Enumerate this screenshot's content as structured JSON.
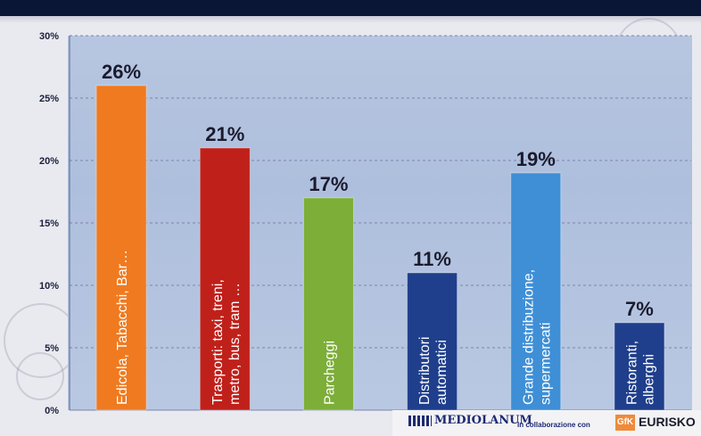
{
  "chart_data": {
    "type": "bar",
    "categories": [
      "Edicola, Tabacchi, Bar…",
      "Trasporti: taxi, treni, metro, bus, tram …",
      "Parcheggi",
      "Distributori automatici",
      "Grande distribuzione, supermercati",
      "Ristoranti, alberghi"
    ],
    "category_lines": [
      [
        "Edicola, Tabacchi, Bar…"
      ],
      [
        "Trasporti: taxi, treni,",
        "metro, bus, tram …"
      ],
      [
        "Parcheggi"
      ],
      [
        "Distributori",
        "automatici"
      ],
      [
        "Grande distribuzione,",
        "supermercati"
      ],
      [
        "Ristoranti,",
        "alberghi"
      ]
    ],
    "values": [
      26,
      21,
      17,
      11,
      19,
      7
    ],
    "data_labels": [
      "26%",
      "21%",
      "17%",
      "11%",
      "19%",
      "7%"
    ],
    "colors": [
      "#f07a1f",
      "#c0201a",
      "#7cae38",
      "#1f3f8c",
      "#3f8fd6",
      "#1f3f8c"
    ],
    "yticks": [
      "0%",
      "5%",
      "10%",
      "15%",
      "20%",
      "25%",
      "30%"
    ],
    "ylim": [
      0,
      30
    ],
    "grid": true
  },
  "footer": {
    "bank_logo": "MEDIOLANUM",
    "collab_text": "In collaborazione con",
    "gfk_logo": "GfK",
    "eurisko_logo": "EURISKO"
  }
}
